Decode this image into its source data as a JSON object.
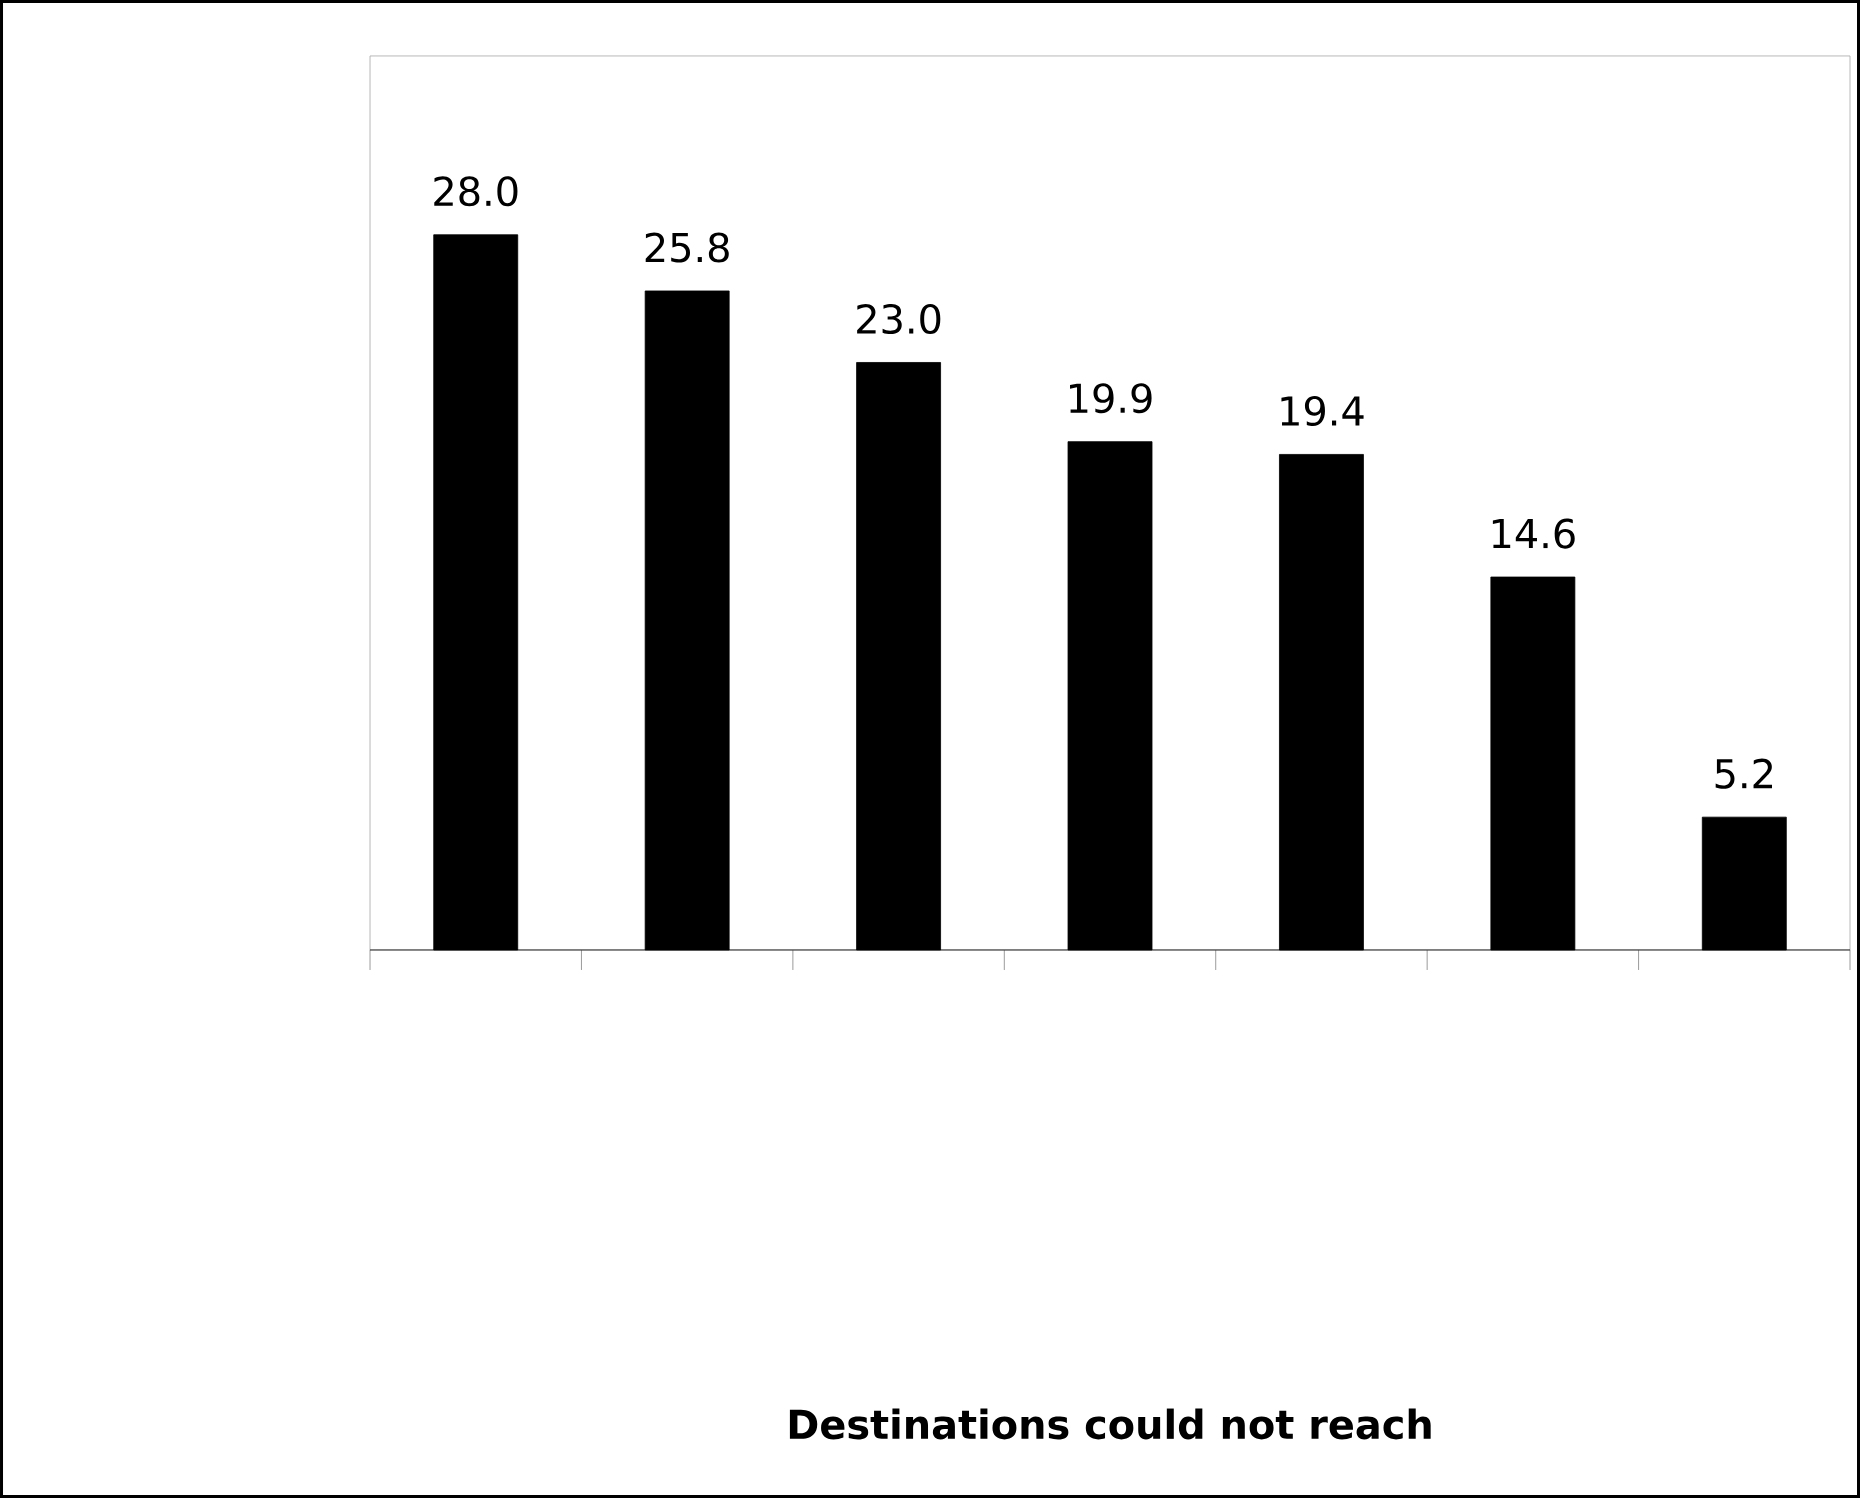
{
  "chart_data": {
    "type": "bar",
    "categories": [
      null,
      null,
      null,
      null,
      null,
      null,
      null
    ],
    "values": [
      28.0,
      25.8,
      23.0,
      19.9,
      19.4,
      14.6,
      5.2
    ],
    "value_labels": [
      "28.0",
      "25.8",
      "23.0",
      "19.9",
      "19.4",
      "14.6",
      "5.2"
    ],
    "color": "#000000",
    "ylim": [
      0,
      35
    ],
    "annotations": [
      "Destinations could not reach"
    ]
  }
}
